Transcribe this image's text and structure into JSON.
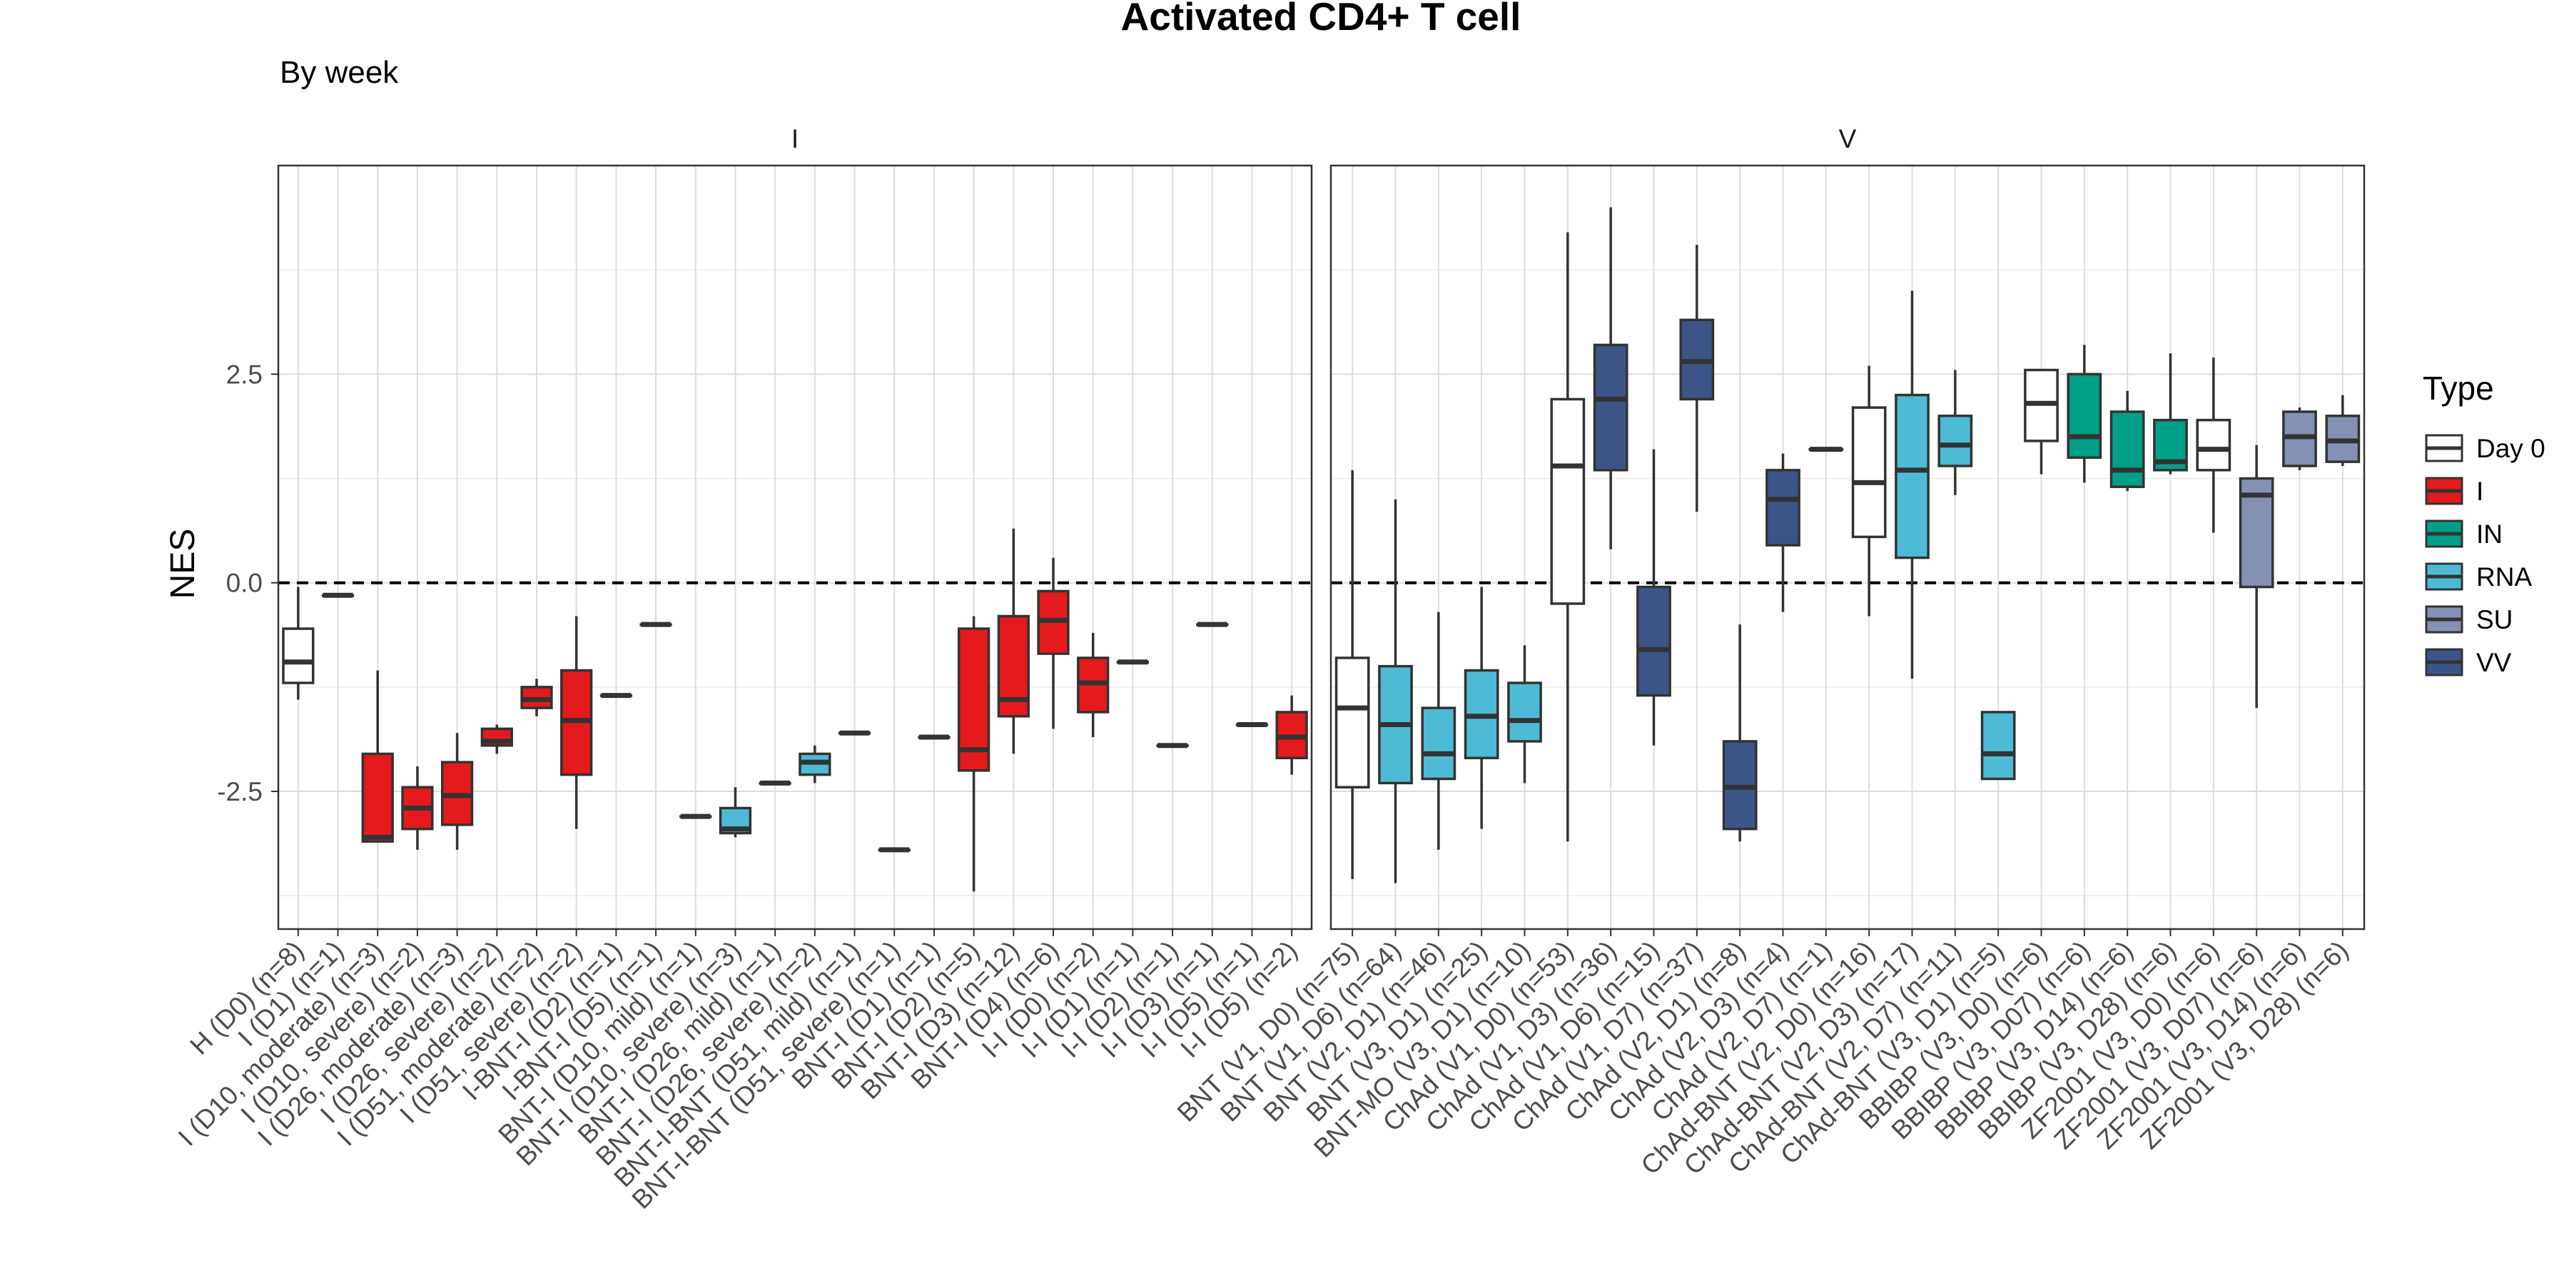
{
  "chart_data": {
    "type": "box",
    "title": "Activated CD4+ T cell",
    "subtitle": "By week",
    "ylabel": "NES",
    "xlabel": "",
    "ylim": [
      -4.15,
      5.0
    ],
    "yticks": [
      -2.5,
      0.0,
      2.5
    ],
    "ytick_labels": [
      "-2.5",
      "0.0",
      "2.5"
    ],
    "reference_line": 0,
    "grid": true,
    "legend_position": "right",
    "legend": {
      "title": "Type",
      "items": [
        {
          "label": "Day 0",
          "color": "#FFFFFF"
        },
        {
          "label": "I",
          "color": "#E41A1C"
        },
        {
          "label": "IN",
          "color": "#00A087"
        },
        {
          "label": "RNA",
          "color": "#4DBBD5"
        },
        {
          "label": "SU",
          "color": "#8491B4"
        },
        {
          "label": "VV",
          "color": "#3C5488"
        }
      ]
    },
    "panels": [
      {
        "name": "I",
        "categories": [
          {
            "label": "H (D0) (n=8)",
            "type": "Day 0",
            "q1": -1.2,
            "median": -0.95,
            "q3": -0.55,
            "lo": -1.4,
            "hi": -0.05
          },
          {
            "label": "I (D1) (n=1)",
            "type": "I",
            "q1": -0.15,
            "median": -0.15,
            "q3": -0.15,
            "lo": -0.15,
            "hi": -0.15
          },
          {
            "label": "I (D10, moderate) (n=3)",
            "type": "I",
            "q1": -3.1,
            "median": -3.05,
            "q3": -2.05,
            "lo": -3.1,
            "hi": -1.05
          },
          {
            "label": "I (D10, severe) (n=2)",
            "type": "I",
            "q1": -2.95,
            "median": -2.7,
            "q3": -2.45,
            "lo": -3.2,
            "hi": -2.2
          },
          {
            "label": "I (D26, moderate) (n=3)",
            "type": "I",
            "q1": -2.9,
            "median": -2.55,
            "q3": -2.15,
            "lo": -3.2,
            "hi": -1.8
          },
          {
            "label": "I (D26, severe) (n=2)",
            "type": "I",
            "q1": -1.95,
            "median": -1.9,
            "q3": -1.75,
            "lo": -2.05,
            "hi": -1.7
          },
          {
            "label": "I (D51, moderate) (n=2)",
            "type": "I",
            "q1": -1.5,
            "median": -1.4,
            "q3": -1.25,
            "lo": -1.6,
            "hi": -1.15
          },
          {
            "label": "I (D51, severe) (n=2)",
            "type": "I",
            "q1": -2.3,
            "median": -1.65,
            "q3": -1.05,
            "lo": -2.95,
            "hi": -0.4
          },
          {
            "label": "I-BNT-I (D2) (n=1)",
            "type": "I",
            "q1": -1.35,
            "median": -1.35,
            "q3": -1.35,
            "lo": -1.35,
            "hi": -1.35
          },
          {
            "label": "I-BNT-I (D5) (n=1)",
            "type": "I",
            "q1": -0.5,
            "median": -0.5,
            "q3": -0.5,
            "lo": -0.5,
            "hi": -0.5
          },
          {
            "label": "BNT-I (D10, mild) (n=1)",
            "type": "RNA",
            "q1": -2.8,
            "median": -2.8,
            "q3": -2.8,
            "lo": -2.8,
            "hi": -2.8
          },
          {
            "label": "BNT-I (D10, severe) (n=3)",
            "type": "RNA",
            "q1": -3.0,
            "median": -2.95,
            "q3": -2.7,
            "lo": -3.05,
            "hi": -2.45
          },
          {
            "label": "BNT-I (D26, mild) (n=1)",
            "type": "RNA",
            "q1": -2.4,
            "median": -2.4,
            "q3": -2.4,
            "lo": -2.4,
            "hi": -2.4
          },
          {
            "label": "BNT-I (D26, severe) (n=2)",
            "type": "RNA",
            "q1": -2.3,
            "median": -2.15,
            "q3": -2.05,
            "lo": -2.4,
            "hi": -1.95
          },
          {
            "label": "BNT-I-BNT (D51, mild) (n=1)",
            "type": "RNA",
            "q1": -1.8,
            "median": -1.8,
            "q3": -1.8,
            "lo": -1.8,
            "hi": -1.8
          },
          {
            "label": "BNT-I-BNT (D51, severe) (n=1)",
            "type": "RNA",
            "q1": -3.2,
            "median": -3.2,
            "q3": -3.2,
            "lo": -3.2,
            "hi": -3.2
          },
          {
            "label": "BNT-I (D1) (n=1)",
            "type": "I",
            "q1": -1.85,
            "median": -1.85,
            "q3": -1.85,
            "lo": -1.85,
            "hi": -1.85
          },
          {
            "label": "BNT-I (D2) (n=5)",
            "type": "I",
            "q1": -2.25,
            "median": -2.0,
            "q3": -0.55,
            "lo": -3.7,
            "hi": -0.4
          },
          {
            "label": "BNT-I (D3) (n=12)",
            "type": "I",
            "q1": -1.6,
            "median": -1.4,
            "q3": -0.4,
            "lo": -2.05,
            "hi": 0.65
          },
          {
            "label": "BNT-I (D4) (n=6)",
            "type": "I",
            "q1": -0.85,
            "median": -0.45,
            "q3": -0.1,
            "lo": -1.75,
            "hi": 0.3
          },
          {
            "label": "I-I (D0) (n=2)",
            "type": "I",
            "q1": -1.55,
            "median": -1.2,
            "q3": -0.9,
            "lo": -1.85,
            "hi": -0.6
          },
          {
            "label": "I-I (D1) (n=1)",
            "type": "I",
            "q1": -0.95,
            "median": -0.95,
            "q3": -0.95,
            "lo": -0.95,
            "hi": -0.95
          },
          {
            "label": "I-I (D2) (n=1)",
            "type": "I",
            "q1": -1.95,
            "median": -1.95,
            "q3": -1.95,
            "lo": -1.95,
            "hi": -1.95
          },
          {
            "label": "I-I (D3) (n=1)",
            "type": "I",
            "q1": -0.5,
            "median": -0.5,
            "q3": -0.5,
            "lo": -0.5,
            "hi": -0.5
          },
          {
            "label": "I-I (D5) (n=1)",
            "type": "I",
            "q1": -1.7,
            "median": -1.7,
            "q3": -1.7,
            "lo": -1.7,
            "hi": -1.7
          },
          {
            "label": "I-I (D5) (n=2)",
            "type": "I",
            "q1": -2.1,
            "median": -1.85,
            "q3": -1.55,
            "lo": -2.3,
            "hi": -1.35
          }
        ]
      },
      {
        "name": "V",
        "categories": [
          {
            "label": "BNT (V1, D0) (n=75)",
            "type": "Day 0",
            "q1": -2.45,
            "median": -1.5,
            "q3": -0.9,
            "lo": -3.55,
            "hi": 1.35
          },
          {
            "label": "BNT (V1, D6) (n=64)",
            "type": "RNA",
            "q1": -2.4,
            "median": -1.7,
            "q3": -1.0,
            "lo": -3.6,
            "hi": 1.0
          },
          {
            "label": "BNT (V2, D1) (n=46)",
            "type": "RNA",
            "q1": -2.35,
            "median": -2.05,
            "q3": -1.5,
            "lo": -3.2,
            "hi": -0.35
          },
          {
            "label": "BNT (V3, D1) (n=25)",
            "type": "RNA",
            "q1": -2.1,
            "median": -1.6,
            "q3": -1.05,
            "lo": -2.95,
            "hi": -0.05
          },
          {
            "label": "BNT-MO (V3, D1) (n=10)",
            "type": "RNA",
            "q1": -1.9,
            "median": -1.65,
            "q3": -1.2,
            "lo": -2.4,
            "hi": -0.75
          },
          {
            "label": "ChAd (V1, D0) (n=53)",
            "type": "Day 0",
            "q1": -0.25,
            "median": 1.4,
            "q3": 2.2,
            "lo": -3.1,
            "hi": 4.2
          },
          {
            "label": "ChAd (V1, D3) (n=36)",
            "type": "VV",
            "q1": 1.35,
            "median": 2.2,
            "q3": 2.85,
            "lo": 0.4,
            "hi": 4.5
          },
          {
            "label": "ChAd (V1, D6) (n=15)",
            "type": "VV",
            "q1": -1.35,
            "median": -0.8,
            "q3": -0.05,
            "lo": -1.95,
            "hi": 1.6
          },
          {
            "label": "ChAd (V1, D7) (n=37)",
            "type": "VV",
            "q1": 2.2,
            "median": 2.65,
            "q3": 3.15,
            "lo": 0.85,
            "hi": 4.05
          },
          {
            "label": "ChAd (V2, D1) (n=8)",
            "type": "VV",
            "q1": -2.95,
            "median": -2.45,
            "q3": -1.9,
            "lo": -3.1,
            "hi": -0.5
          },
          {
            "label": "ChAd (V2, D3) (n=4)",
            "type": "VV",
            "q1": 0.45,
            "median": 1.0,
            "q3": 1.35,
            "lo": -0.35,
            "hi": 1.55
          },
          {
            "label": "ChAd (V2, D7) (n=1)",
            "type": "VV",
            "q1": 1.6,
            "median": 1.6,
            "q3": 1.6,
            "lo": 1.6,
            "hi": 1.6
          },
          {
            "label": "ChAd-BNT (V2, D0) (n=16)",
            "type": "Day 0",
            "q1": 0.55,
            "median": 1.2,
            "q3": 2.1,
            "lo": -0.4,
            "hi": 2.6
          },
          {
            "label": "ChAd-BNT (V2, D3) (n=17)",
            "type": "RNA",
            "q1": 0.3,
            "median": 1.35,
            "q3": 2.25,
            "lo": -1.15,
            "hi": 3.5
          },
          {
            "label": "ChAd-BNT (V2, D7) (n=11)",
            "type": "RNA",
            "q1": 1.4,
            "median": 1.65,
            "q3": 2.0,
            "lo": 1.05,
            "hi": 2.55
          },
          {
            "label": "ChAd-BNT (V3, D1) (n=5)",
            "type": "RNA",
            "q1": -2.35,
            "median": -2.05,
            "q3": -1.55,
            "lo": -2.35,
            "hi": -1.55
          },
          {
            "label": "BBIBP (V3, D0) (n=6)",
            "type": "Day 0",
            "q1": 1.7,
            "median": 2.15,
            "q3": 2.55,
            "lo": 1.3,
            "hi": 2.55
          },
          {
            "label": "BBIBP (V3, D07) (n=6)",
            "type": "IN",
            "q1": 1.5,
            "median": 1.75,
            "q3": 2.5,
            "lo": 1.2,
            "hi": 2.85
          },
          {
            "label": "BBIBP (V3, D14) (n=6)",
            "type": "IN",
            "q1": 1.15,
            "median": 1.35,
            "q3": 2.05,
            "lo": 1.1,
            "hi": 2.3
          },
          {
            "label": "BBIBP (V3, D28) (n=6)",
            "type": "IN",
            "q1": 1.35,
            "median": 1.45,
            "q3": 1.95,
            "lo": 1.3,
            "hi": 2.75
          },
          {
            "label": "ZF2001 (V3, D0) (n=6)",
            "type": "Day 0",
            "q1": 1.35,
            "median": 1.6,
            "q3": 1.95,
            "lo": 0.6,
            "hi": 2.7
          },
          {
            "label": "ZF2001 (V3, D07) (n=6)",
            "type": "SU",
            "q1": -0.05,
            "median": 1.05,
            "q3": 1.25,
            "lo": -1.5,
            "hi": 1.65
          },
          {
            "label": "ZF2001 (V3, D14) (n=6)",
            "type": "SU",
            "q1": 1.4,
            "median": 1.75,
            "q3": 2.05,
            "lo": 1.35,
            "hi": 2.1
          },
          {
            "label": "ZF2001 (V3, D28) (n=6)",
            "type": "SU",
            "q1": 1.45,
            "median": 1.7,
            "q3": 2.0,
            "lo": 1.4,
            "hi": 2.25
          }
        ]
      }
    ]
  }
}
